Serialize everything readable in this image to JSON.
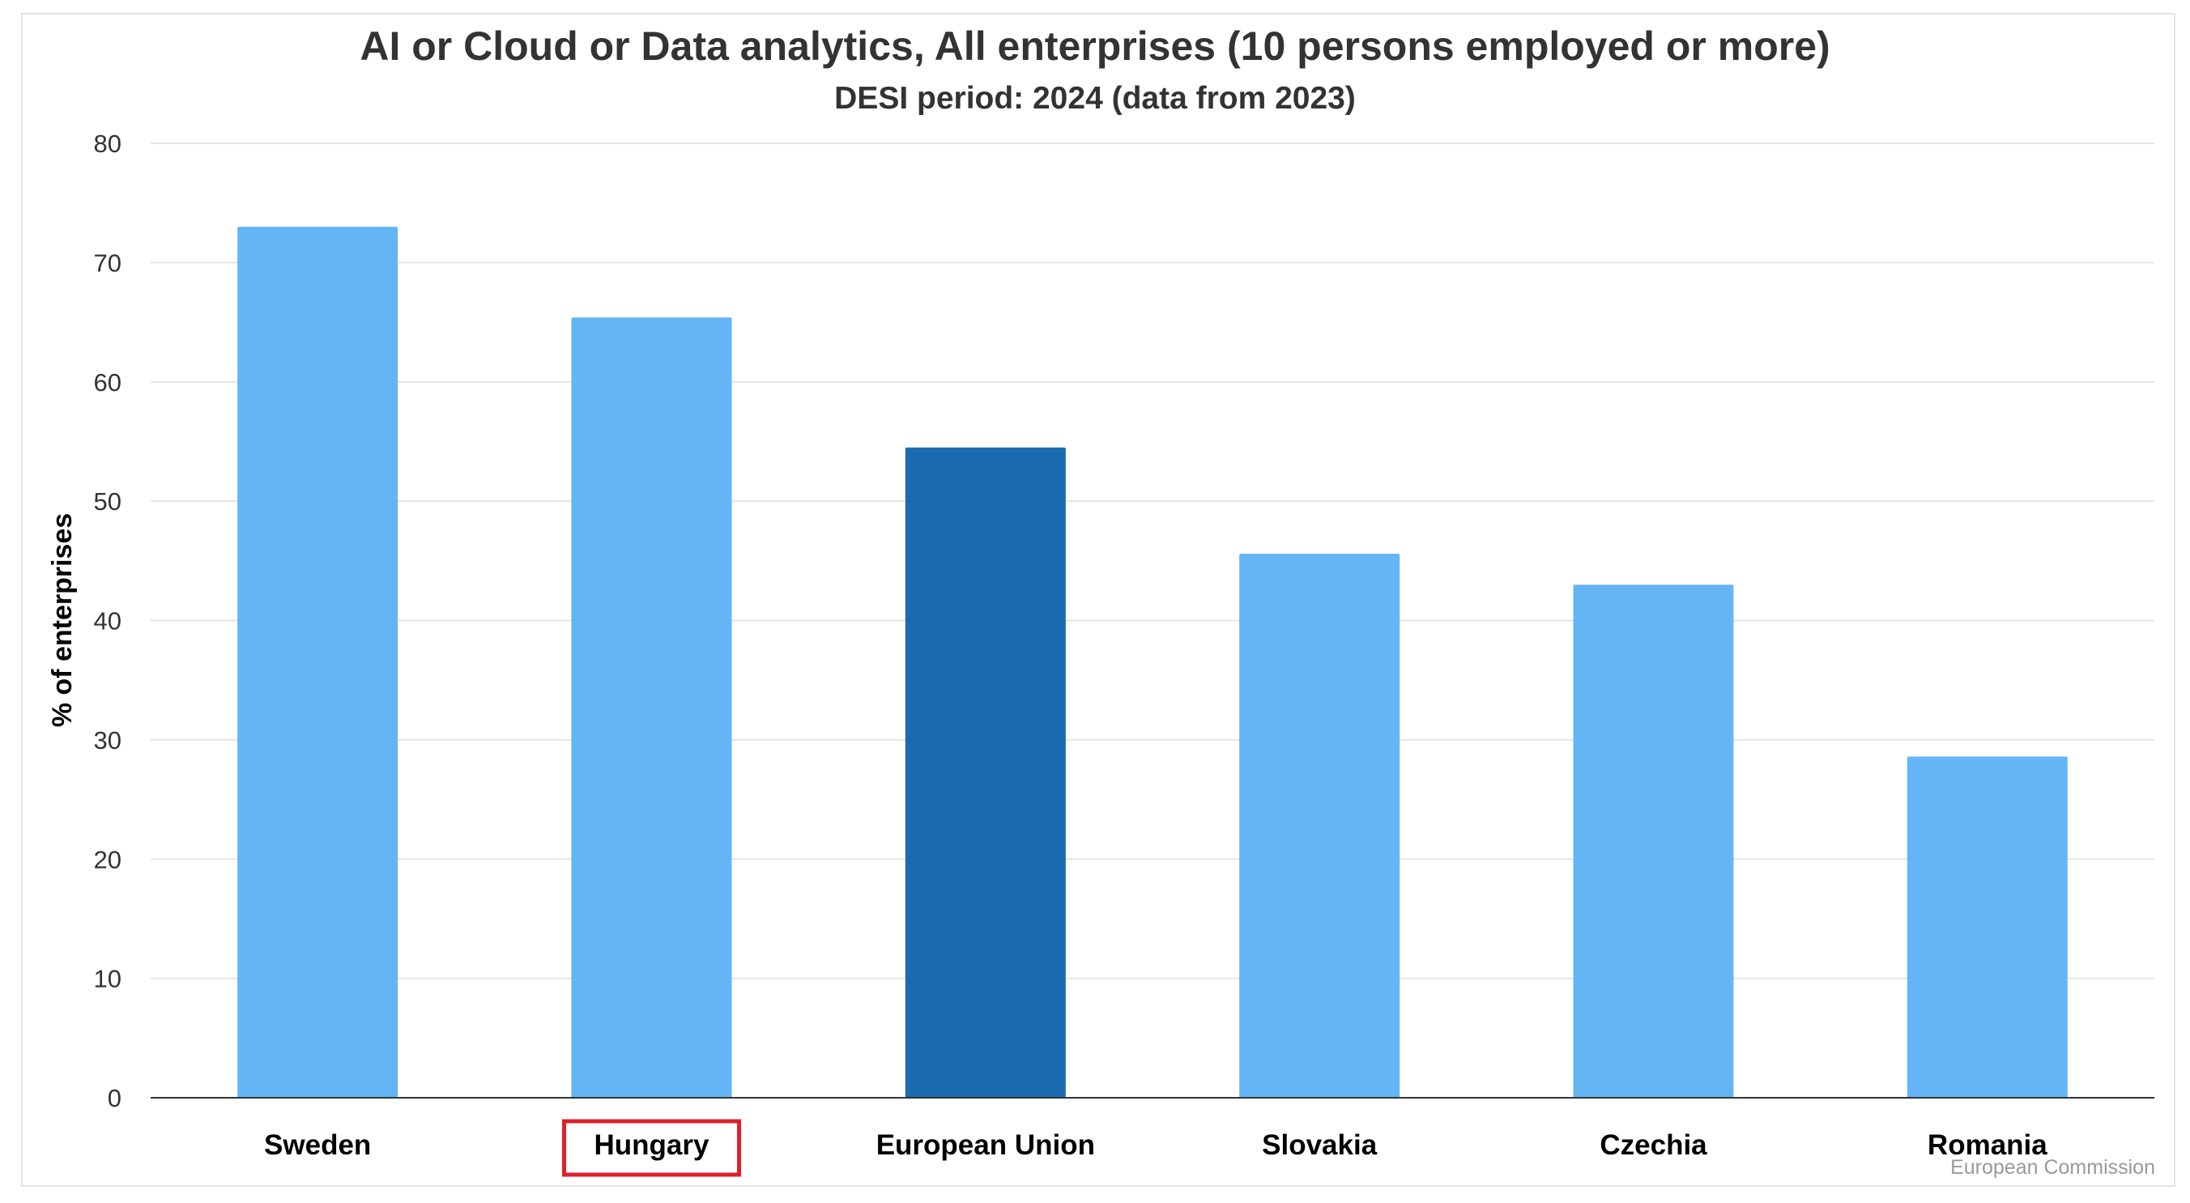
{
  "chart_data": {
    "type": "bar",
    "title": "AI or Cloud or Data analytics, All enterprises (10 persons employed or more)",
    "subtitle": "DESI period: 2024 (data from 2023)",
    "ylabel": "% of enterprises",
    "xlabel": "",
    "categories": [
      "Sweden",
      "Hungary",
      "European Union",
      "Slovakia",
      "Czechia",
      "Romania"
    ],
    "values": [
      73.0,
      65.4,
      54.5,
      45.6,
      43.0,
      28.6
    ],
    "highlighted_category": "Hungary",
    "ylim": [
      0,
      80
    ],
    "yticks": [
      0,
      10,
      20,
      30,
      40,
      50,
      60,
      70,
      80
    ],
    "grid": true,
    "legend": "none",
    "colors": {
      "default_bar": "#64b5f6",
      "eu_bar": "#1a6bb0",
      "highlight_box": "#e0202a",
      "grid": "#e6e6e6",
      "axis": "#333333"
    },
    "credit": "European Commission"
  }
}
